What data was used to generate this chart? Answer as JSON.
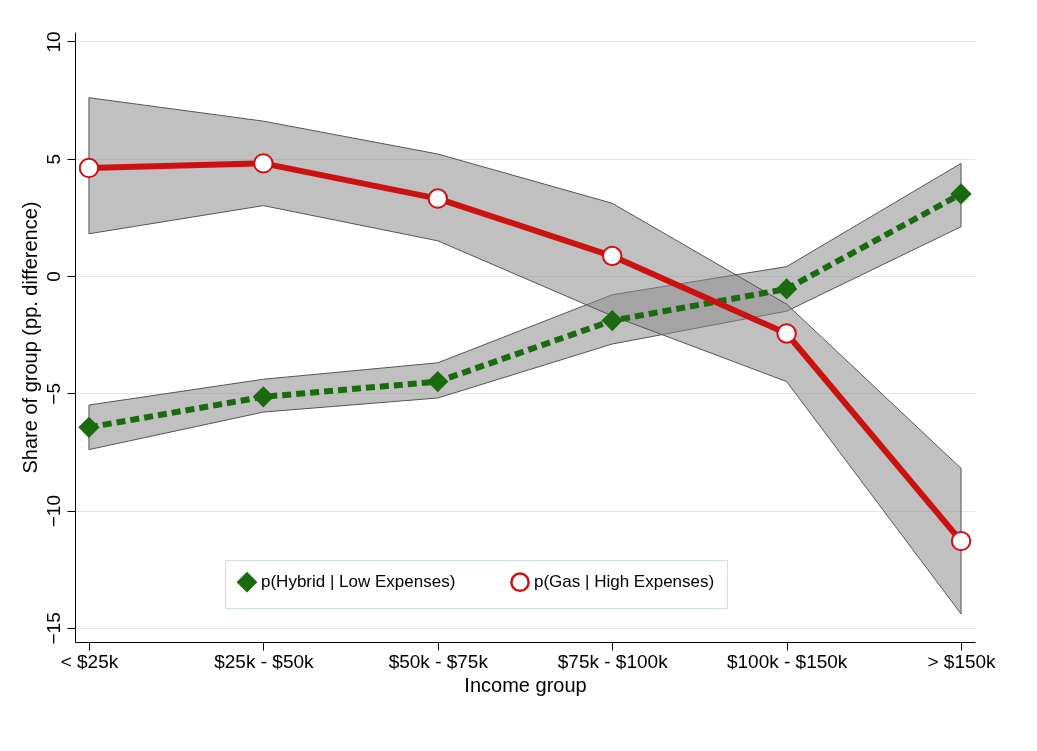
{
  "chart_data": {
    "type": "line",
    "xlabel": "Income group",
    "ylabel": "Share of group (pp. difference)",
    "categories": [
      "< $25k",
      "$25k - $50k",
      "$50k - $75k",
      "$75k - $100k",
      "$100k - $150k",
      "> $150k"
    ],
    "ylim": [
      -15.6,
      10.4
    ],
    "yticks": [
      -15,
      -10,
      -5,
      0,
      5,
      10
    ],
    "grid": "y",
    "legend": "bottom",
    "series": [
      {
        "name": "p(Hybrid | Low Expenses)",
        "color": "#1a6b0f",
        "marker": "diamond",
        "line_style": "dashed",
        "values": [
          -6.45,
          -5.15,
          -4.5,
          -1.9,
          -0.55,
          3.5
        ],
        "lower": [
          -7.4,
          -5.8,
          -5.2,
          -2.9,
          -1.5,
          2.1
        ],
        "upper": [
          -5.5,
          -4.4,
          -3.7,
          -0.8,
          0.4,
          4.8
        ]
      },
      {
        "name": "p(Gas | High Expenses)",
        "color": "#cc1111",
        "marker": "circle",
        "line_style": "solid",
        "values": [
          4.6,
          4.8,
          3.3,
          0.85,
          -2.45,
          -11.3
        ],
        "lower": [
          1.8,
          3.0,
          1.5,
          -1.7,
          -4.5,
          -14.4
        ],
        "upper": [
          7.6,
          6.6,
          5.2,
          3.1,
          -1.2,
          -8.2
        ]
      }
    ]
  }
}
